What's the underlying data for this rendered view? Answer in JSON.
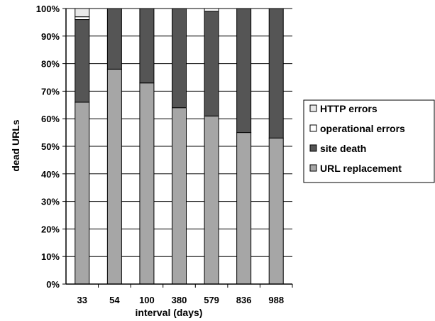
{
  "chart_data": {
    "type": "bar",
    "stacked": true,
    "normalized": true,
    "categories": [
      "33",
      "54",
      "100",
      "380",
      "579",
      "836",
      "988"
    ],
    "series": [
      {
        "name": "URL replacement",
        "color": "#a6a6a6",
        "values": [
          66,
          78,
          73,
          64,
          61,
          55,
          53
        ]
      },
      {
        "name": "site death",
        "color": "#555555",
        "values": [
          30,
          22,
          27,
          36,
          38,
          45,
          47
        ]
      },
      {
        "name": "operational errors",
        "color": "#ffffff",
        "values": [
          1,
          0,
          0,
          0,
          1,
          0,
          0
        ]
      },
      {
        "name": "HTTP errors",
        "color": "#e8e8e8",
        "values": [
          3,
          0,
          0,
          0,
          0,
          0,
          0
        ]
      }
    ],
    "legend_order": [
      "HTTP errors",
      "operational errors",
      "site death",
      "URL replacement"
    ],
    "ylim": [
      0,
      100
    ],
    "yticks": [
      "0%",
      "10%",
      "20%",
      "30%",
      "40%",
      "50%",
      "60%",
      "70%",
      "80%",
      "90%",
      "100%"
    ],
    "xlabel": "interval (days)",
    "ylabel": "dead URLs",
    "grid": true,
    "legend_position": "right"
  }
}
